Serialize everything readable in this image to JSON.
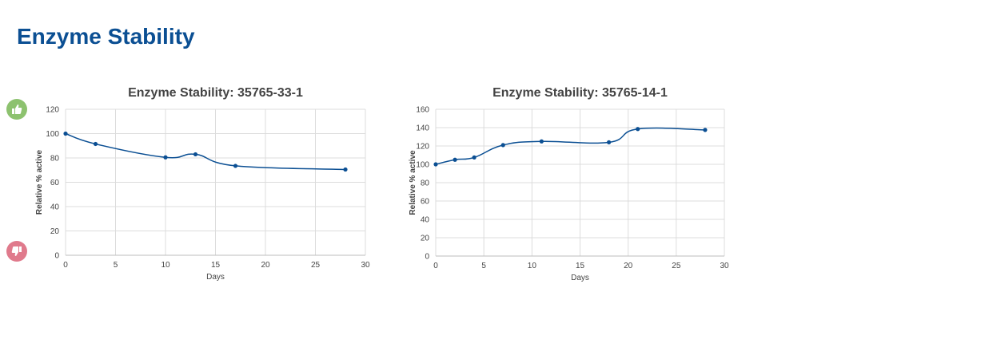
{
  "page": {
    "title": "Enzyme Stability"
  },
  "feedback": {
    "up_icon": "thumbs-up-icon",
    "down_icon": "thumbs-down-icon",
    "up_color": "#8dc26f",
    "down_color": "#e07a8c"
  },
  "style": {
    "line_color": "#0b4f93",
    "grid_color": "#dcdcdc",
    "text_color": "#444444"
  },
  "chart_data": [
    {
      "type": "line",
      "title": "Enzyme Stability: 35765-33-1",
      "xlabel": "Days",
      "ylabel": "Relative % active",
      "xlim": [
        0,
        30
      ],
      "ylim": [
        0,
        120
      ],
      "xticks": [
        0,
        5,
        10,
        15,
        20,
        25,
        30
      ],
      "yticks": [
        0,
        20,
        40,
        60,
        80,
        100,
        120
      ],
      "grid": true,
      "smooth": true,
      "series": [
        {
          "x": [
            0,
            3,
            10,
            13,
            17,
            28
          ],
          "y": [
            100,
            91.5,
            80.5,
            83,
            73.5,
            70.5
          ]
        }
      ]
    },
    {
      "type": "line",
      "title": "Enzyme Stability: 35765-14-1",
      "xlabel": "Days",
      "ylabel": "Relative % active",
      "xlim": [
        0,
        30
      ],
      "ylim": [
        0,
        160
      ],
      "xticks": [
        0,
        5,
        10,
        15,
        20,
        25,
        30
      ],
      "yticks": [
        0,
        20,
        40,
        60,
        80,
        100,
        120,
        140,
        160
      ],
      "grid": true,
      "smooth": true,
      "series": [
        {
          "x": [
            0,
            2,
            4,
            7,
            11,
            18,
            21,
            28
          ],
          "y": [
            100,
            105,
            107.5,
            121,
            125,
            124,
            138.5,
            137.5
          ]
        }
      ]
    }
  ]
}
